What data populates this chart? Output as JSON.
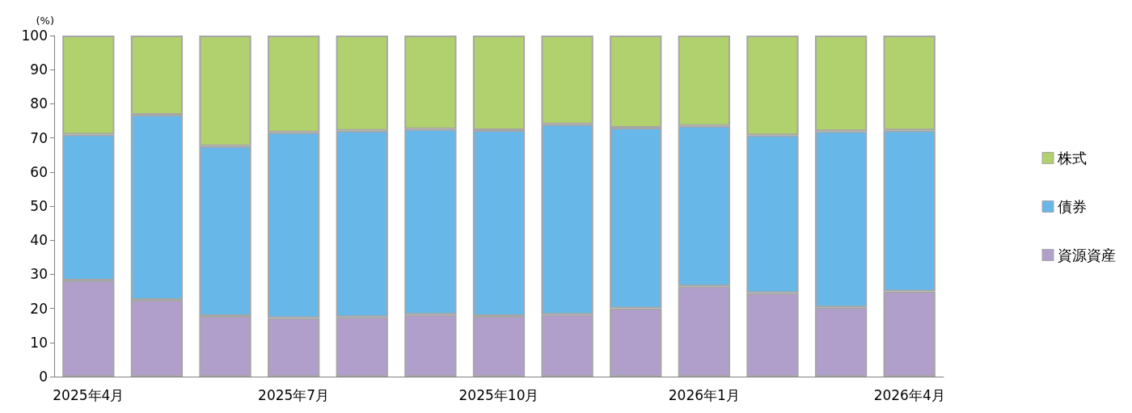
{
  "chart_data": {
    "type": "bar",
    "stacked": true,
    "ylabel": "(%)",
    "categories": [
      "2025年4月",
      null,
      null,
      "2025年7月",
      null,
      null,
      "2025年10月",
      null,
      null,
      "2026年1月",
      null,
      null,
      "2026年4月"
    ],
    "series": [
      {
        "name": "資源資産",
        "color": "#b19fcb",
        "values": [
          28.2,
          22.5,
          17.8,
          17.2,
          17.5,
          18.2,
          17.8,
          18.2,
          20,
          26.5,
          24.5,
          20.3,
          25
        ]
      },
      {
        "name": "債券",
        "color": "#67b8e8",
        "values": [
          42.8,
          54.3,
          49.8,
          54.4,
          54.6,
          54.4,
          54.5,
          55.8,
          53,
          47,
          46.3,
          51.7,
          47.2
        ]
      },
      {
        "name": "株式",
        "color": "#b0d16e",
        "values": [
          29,
          23.2,
          32.4,
          28.4,
          27.9,
          27.4,
          27.7,
          26,
          27,
          26.5,
          29.2,
          28,
          27.8
        ]
      }
    ],
    "ylim": [
      0,
      100
    ],
    "yticks": [
      0,
      10,
      20,
      30,
      40,
      50,
      60,
      70,
      80,
      90,
      100
    ],
    "grid": false,
    "legend": "right"
  }
}
